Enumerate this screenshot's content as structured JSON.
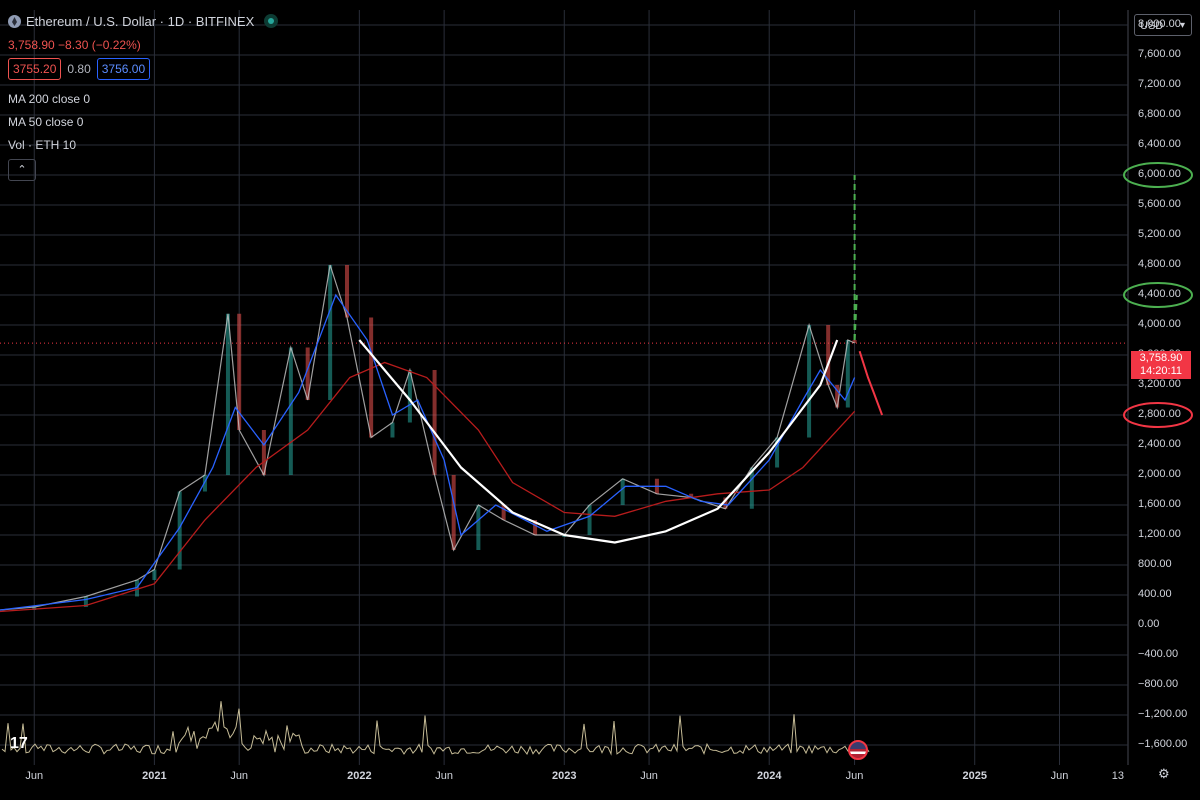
{
  "header": {
    "title": "Ethereum / U.S. Dollar · 1D · BITFINEX",
    "price_change": "3,758.90  −8.30 (−0.22%)",
    "bid": "3755.20",
    "spread": "0.80",
    "ask": "3756.00"
  },
  "indicators": [
    {
      "label": "MA 200 close 0"
    },
    {
      "label": "MA 50 close 0"
    },
    {
      "label": "Vol · ETH 10"
    }
  ],
  "collapse_glyph": "⌃",
  "currency": "USD",
  "current_price": {
    "value": "3,758.90",
    "countdown": "14:20:11"
  },
  "icons": {
    "logo": "ethereum-logo-icon",
    "status": "market-status-icon",
    "settings": "gear-icon",
    "flag": "us-flag-icon",
    "brand": "tradingview-logo-icon"
  },
  "brand_text": "17",
  "colors": {
    "up": "#26a69a",
    "down": "#ef5350",
    "ma200": "#b71c1c",
    "ma50": "#2962ff",
    "bowl": "#ffffff",
    "target": "#4caf50",
    "bear": "#f23645",
    "grid": "#2a2e39",
    "volume": "#e8dcb0"
  },
  "chart_data": {
    "type": "line",
    "title": "Ethereum / U.S. Dollar · 1D · BITFINEX",
    "ylim": [
      -1800,
      8200
    ],
    "y_ticks": [
      "8,000.00",
      "7,600.00",
      "7,200.00",
      "6,800.00",
      "6,400.00",
      "6,000.00",
      "5,600.00",
      "5,200.00",
      "4,800.00",
      "4,400.00",
      "4,000.00",
      "3,600.00",
      "3,200.00",
      "2,800.00",
      "2,400.00",
      "2,000.00",
      "1,600.00",
      "1,200.00",
      "800.00",
      "400.00",
      "0.00",
      "−400.00",
      "−800.00",
      "−1,200.00",
      "−1,600.00"
    ],
    "y_tick_values": [
      8000,
      7600,
      7200,
      6800,
      6400,
      6000,
      5600,
      5200,
      4800,
      4400,
      4000,
      3600,
      3200,
      2800,
      2400,
      2000,
      1600,
      1200,
      800,
      400,
      0,
      -400,
      -800,
      -1200,
      -1600
    ],
    "xlim": [
      "2020-04-01",
      "2025-10-01"
    ],
    "x_ticks": [
      {
        "label": "Jun",
        "date": "2020-06-01",
        "bold": false
      },
      {
        "label": "2021",
        "date": "2021-01-01",
        "bold": true
      },
      {
        "label": "Jun",
        "date": "2021-06-01",
        "bold": false
      },
      {
        "label": "2022",
        "date": "2022-01-01",
        "bold": true
      },
      {
        "label": "Jun",
        "date": "2022-06-01",
        "bold": false
      },
      {
        "label": "2023",
        "date": "2023-01-01",
        "bold": true
      },
      {
        "label": "Jun",
        "date": "2023-06-01",
        "bold": false
      },
      {
        "label": "2024",
        "date": "2024-01-01",
        "bold": true
      },
      {
        "label": "Jun",
        "date": "2024-06-01",
        "bold": false
      },
      {
        "label": "2025",
        "date": "2025-01-01",
        "bold": true
      },
      {
        "label": "Jun",
        "date": "2025-06-01",
        "bold": false
      },
      {
        "label": "13",
        "date": "2025-09-13",
        "bold": false
      }
    ],
    "grid": true,
    "series": [
      {
        "key": "price",
        "x": [
          "2020-04-01",
          "2020-06-01",
          "2020-09-01",
          "2020-12-01",
          "2021-01-01",
          "2021-02-15",
          "2021-04-01",
          "2021-05-12",
          "2021-06-01",
          "2021-07-15",
          "2021-09-01",
          "2021-10-01",
          "2021-11-10",
          "2021-12-10",
          "2022-01-22",
          "2022-03-01",
          "2022-04-01",
          "2022-05-15",
          "2022-06-18",
          "2022-08-01",
          "2022-09-15",
          "2022-11-10",
          "2023-01-01",
          "2023-02-15",
          "2023-04-15",
          "2023-06-15",
          "2023-08-15",
          "2023-10-15",
          "2023-12-01",
          "2024-01-15",
          "2024-03-12",
          "2024-04-15",
          "2024-05-01",
          "2024-05-20",
          "2024-06-01"
        ],
        "y": [
          200,
          240,
          380,
          600,
          740,
          1780,
          2000,
          4150,
          2600,
          2000,
          3700,
          3000,
          4800,
          4100,
          2500,
          2700,
          3400,
          2000,
          1000,
          1600,
          1400,
          1200,
          1200,
          1600,
          1950,
          1750,
          1700,
          1550,
          2100,
          2500,
          4000,
          3200,
          2900,
          3800,
          3760
        ]
      },
      {
        "key": "ma50",
        "x": [
          "2020-04-01",
          "2020-09-01",
          "2020-12-01",
          "2021-02-15",
          "2021-04-15",
          "2021-05-25",
          "2021-07-15",
          "2021-09-15",
          "2021-11-20",
          "2022-01-15",
          "2022-03-01",
          "2022-04-15",
          "2022-06-01",
          "2022-07-01",
          "2022-09-01",
          "2022-12-01",
          "2023-02-15",
          "2023-04-20",
          "2023-07-01",
          "2023-09-01",
          "2023-10-20",
          "2024-01-01",
          "2024-03-01",
          "2024-04-01",
          "2024-05-15",
          "2024-06-01"
        ],
        "y": [
          200,
          340,
          500,
          1300,
          2100,
          2900,
          2400,
          3100,
          4400,
          3800,
          2800,
          3000,
          2200,
          1200,
          1600,
          1250,
          1450,
          1850,
          1850,
          1650,
          1600,
          2200,
          3000,
          3400,
          3000,
          3300
        ]
      },
      {
        "key": "ma200",
        "x": [
          "2020-04-01",
          "2020-09-01",
          "2021-01-01",
          "2021-04-01",
          "2021-07-01",
          "2021-10-01",
          "2021-12-15",
          "2022-02-15",
          "2022-05-01",
          "2022-08-01",
          "2022-10-01",
          "2023-01-01",
          "2023-04-01",
          "2023-07-01",
          "2023-10-01",
          "2024-01-01",
          "2024-03-01",
          "2024-06-01"
        ],
        "y": [
          180,
          260,
          550,
          1400,
          2100,
          2600,
          3300,
          3500,
          3300,
          2600,
          1900,
          1500,
          1450,
          1650,
          1750,
          1800,
          2100,
          2850
        ]
      },
      {
        "key": "bowl",
        "x": [
          "2022-01-01",
          "2022-04-01",
          "2022-07-01",
          "2022-10-01",
          "2023-01-01",
          "2023-04-01",
          "2023-07-01",
          "2023-10-01",
          "2024-01-01",
          "2024-04-01",
          "2024-05-01"
        ],
        "y": [
          3800,
          3000,
          2100,
          1500,
          1200,
          1100,
          1250,
          1550,
          2300,
          3200,
          3800
        ]
      },
      {
        "key": "bear",
        "x": [
          "2024-06-10",
          "2024-06-25",
          "2024-07-05",
          "2024-07-15",
          "2024-07-20"
        ],
        "y": [
          3650,
          3300,
          3100,
          2900,
          2800
        ]
      }
    ],
    "annotations": {
      "targets_circled": [
        "6,000.00",
        "4,400.00"
      ],
      "support_circled": "2,800.00",
      "target_paths": [
        {
          "x": [
            "2024-06-01",
            "2024-06-01",
            "2024-06-01"
          ],
          "y": [
            3800,
            5000,
            6000
          ]
        },
        {
          "x": [
            "2024-06-01",
            "2024-06-05"
          ],
          "y": [
            3800,
            4400
          ]
        }
      ]
    }
  }
}
